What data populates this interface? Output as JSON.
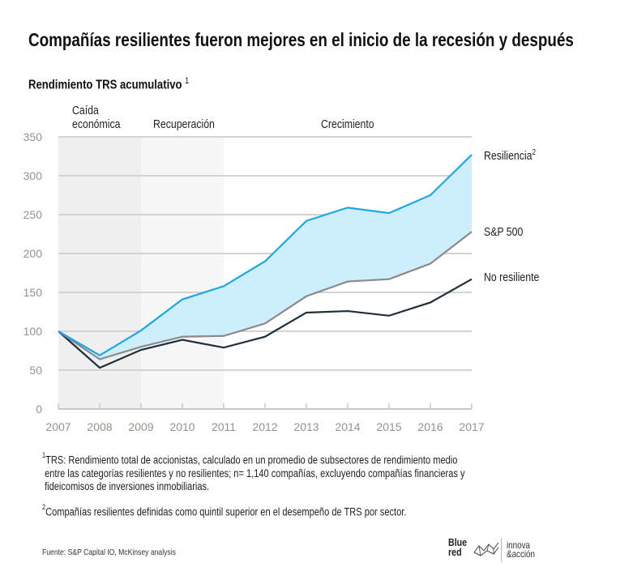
{
  "title": "Compañías resilientes fueron mejores en el inicio de la recesión y después",
  "subtitle": "Rendimiento TRS acumulativo",
  "subtitle_sup": "1",
  "phases": [
    {
      "label_line1": "Caída",
      "label_line2": "económica",
      "from": "2007",
      "to": "2009",
      "shade": "#efefef"
    },
    {
      "label_line1": "",
      "label_line2": "Recuperación",
      "from": "2009",
      "to": "2011",
      "shade": "#f7f7f7"
    },
    {
      "label_line1": "",
      "label_line2": "Crecimiento",
      "from": "2011",
      "to": "2017",
      "shade": "#ffffff"
    }
  ],
  "series_labels": [
    {
      "text": "Resiliencia",
      "sup": "2"
    },
    {
      "text": "S&P 500",
      "sup": ""
    },
    {
      "text": "No resiliente",
      "sup": ""
    }
  ],
  "chart_data": {
    "type": "line",
    "title": "Rendimiento TRS acumulativo",
    "xlabel": "",
    "ylabel": "",
    "x": [
      "2007",
      "2008",
      "2009",
      "2010",
      "2011",
      "2012",
      "2013",
      "2014",
      "2015",
      "2016",
      "2017"
    ],
    "ylim": [
      0,
      350
    ],
    "yticks": [
      0,
      50,
      100,
      150,
      200,
      250,
      300,
      350
    ],
    "grid": true,
    "legend": "right (inline labels at line ends)",
    "series": [
      {
        "name": "Resiliencia",
        "color": "#1ea7e6",
        "values": [
          100,
          69,
          101,
          141,
          158,
          190,
          242,
          259,
          252,
          275,
          327
        ]
      },
      {
        "name": "S&P 500",
        "color": "#8a8a8a",
        "values": [
          100,
          64,
          80,
          93,
          94,
          110,
          145,
          164,
          167,
          187,
          228
        ]
      },
      {
        "name": "No resiliente",
        "color": "#1e2f3c",
        "values": [
          100,
          53,
          76,
          89,
          79,
          93,
          124,
          126,
          120,
          137,
          167
        ]
      }
    ],
    "fill_between": {
      "upper": "Resiliencia",
      "lower": "S&P 500",
      "color": "#cdeefc"
    }
  },
  "notes": {
    "note1_sup": "1",
    "note1_line1": "TRS: Rendimiento total de accionistas, calculado en un promedio de subsectores de rendimiento medio",
    "note1_line2": "entre las categorías resilientes y no resilientes; n= 1,140 compañías, excluyendo compañías financieras y",
    "note1_line3": "fideicomisos de inversiones inmobiliarias.",
    "note2_sup": "2",
    "note2_line1": "Compañías resilientes definidas como quintil superior en el desempeño de TRS por sector."
  },
  "source": "Fuente: S&P Capital IO, McKinsey analysis",
  "logos": {
    "bluered_line1": "Blue",
    "bluered_line2": "red",
    "innova_line1": "innova",
    "innova_line2": "&acción"
  }
}
